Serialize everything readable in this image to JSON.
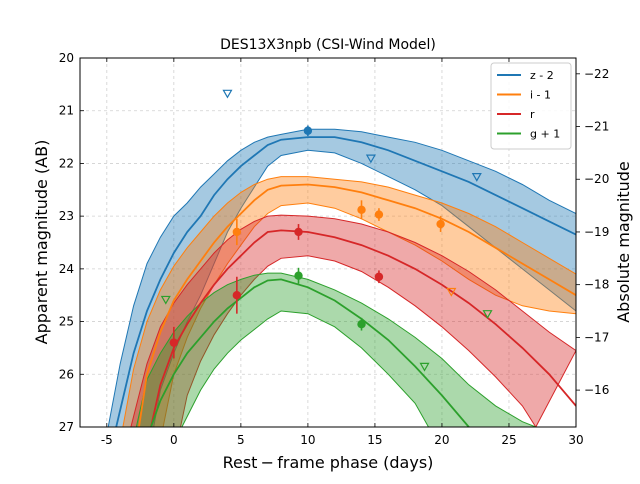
{
  "chart_data": {
    "type": "line",
    "title": "DES13X3npb (CSI-Wind Model)",
    "xlabel": "Rest − frame phase (days)",
    "ylabel": "Apparent magnitude (AB)",
    "y2label": "Absolute magnitude",
    "xlim": [
      -7,
      30
    ],
    "ylim": [
      27,
      20
    ],
    "y2lim": [
      -15.3,
      -22.3
    ],
    "xticks": [
      "-5",
      "0",
      "5",
      "10",
      "15",
      "20",
      "25",
      "30"
    ],
    "xtick_values": [
      -5,
      0,
      5,
      10,
      15,
      20,
      25,
      30
    ],
    "yticks": [
      "20",
      "21",
      "22",
      "23",
      "24",
      "25",
      "26",
      "27"
    ],
    "ytick_values": [
      20,
      21,
      22,
      23,
      24,
      25,
      26,
      27
    ],
    "y2ticks": [
      "−22",
      "−21",
      "−20",
      "−19",
      "−18",
      "−17",
      "−16"
    ],
    "y2tick_values": [
      -22,
      -21,
      -20,
      -19,
      -18,
      -17,
      -16
    ],
    "grid": true,
    "legend_position": "top-right",
    "series": [
      {
        "name": "z - 2",
        "color": "#1f77b4",
        "model": [
          [
            -4.3,
            27.0
          ],
          [
            -3,
            25.6
          ],
          [
            -2,
            24.8
          ],
          [
            -1,
            24.2
          ],
          [
            0,
            23.7
          ],
          [
            1,
            23.3
          ],
          [
            2,
            23.0
          ],
          [
            3,
            22.6
          ],
          [
            4,
            22.3
          ],
          [
            5,
            22.05
          ],
          [
            6,
            21.85
          ],
          [
            7,
            21.65
          ],
          [
            8,
            21.55
          ],
          [
            10,
            21.5
          ],
          [
            12,
            21.5
          ],
          [
            14,
            21.6
          ],
          [
            16,
            21.75
          ],
          [
            18,
            21.95
          ],
          [
            20,
            22.15
          ],
          [
            22,
            22.35
          ],
          [
            24,
            22.6
          ],
          [
            26,
            22.85
          ],
          [
            28,
            23.1
          ],
          [
            30,
            23.35
          ]
        ],
        "band_upper": [
          [
            -4.9,
            27.0
          ],
          [
            -4,
            25.8
          ],
          [
            -3,
            24.7
          ],
          [
            -2,
            23.9
          ],
          [
            -1,
            23.4
          ],
          [
            0,
            23.0
          ],
          [
            1,
            22.75
          ],
          [
            2,
            22.45
          ],
          [
            3,
            22.2
          ],
          [
            4,
            21.95
          ],
          [
            5,
            21.75
          ],
          [
            6,
            21.6
          ],
          [
            7,
            21.5
          ],
          [
            8,
            21.45
          ],
          [
            10,
            21.35
          ],
          [
            12,
            21.35
          ],
          [
            14,
            21.4
          ],
          [
            16,
            21.5
          ],
          [
            18,
            21.6
          ],
          [
            20,
            21.75
          ],
          [
            22,
            21.95
          ],
          [
            24,
            22.15
          ],
          [
            26,
            22.4
          ],
          [
            28,
            22.7
          ],
          [
            30,
            22.95
          ]
        ],
        "band_lower": [
          [
            -1.5,
            27.0
          ],
          [
            -1,
            26.3
          ],
          [
            0,
            25.6
          ],
          [
            1,
            25.0
          ],
          [
            2,
            24.5
          ],
          [
            3,
            23.9
          ],
          [
            4,
            23.3
          ],
          [
            5,
            22.85
          ],
          [
            6,
            22.45
          ],
          [
            7,
            22.05
          ],
          [
            8,
            21.85
          ],
          [
            10,
            21.75
          ],
          [
            12,
            21.8
          ],
          [
            14,
            22.0
          ],
          [
            16,
            22.25
          ],
          [
            18,
            22.5
          ],
          [
            20,
            22.8
          ],
          [
            22,
            23.2
          ],
          [
            24,
            23.6
          ],
          [
            26,
            24.0
          ],
          [
            28,
            24.4
          ],
          [
            30,
            24.8
          ]
        ],
        "detections": [
          {
            "x": 10,
            "y": 21.38,
            "err": 0.1
          }
        ],
        "upper_limits": [
          {
            "x": 4,
            "y": 20.67
          },
          {
            "x": 14.7,
            "y": 21.9
          },
          {
            "x": 22.6,
            "y": 22.25
          }
        ]
      },
      {
        "name": "i - 1",
        "color": "#ff7f0e",
        "model": [
          [
            -2.6,
            27.0
          ],
          [
            -2,
            26.0
          ],
          [
            -1,
            25.2
          ],
          [
            0,
            24.6
          ],
          [
            1,
            24.2
          ],
          [
            2,
            23.85
          ],
          [
            3,
            23.5
          ],
          [
            4,
            23.2
          ],
          [
            5,
            22.95
          ],
          [
            6,
            22.7
          ],
          [
            7,
            22.5
          ],
          [
            8,
            22.42
          ],
          [
            10,
            22.4
          ],
          [
            12,
            22.45
          ],
          [
            14,
            22.55
          ],
          [
            16,
            22.7
          ],
          [
            18,
            22.85
          ],
          [
            20,
            23.05
          ],
          [
            22,
            23.3
          ],
          [
            24,
            23.6
          ],
          [
            26,
            23.9
          ],
          [
            28,
            24.2
          ],
          [
            30,
            24.5
          ]
        ],
        "band_upper": [
          [
            -3.8,
            27.0
          ],
          [
            -3,
            25.9
          ],
          [
            -2,
            25.0
          ],
          [
            -1,
            24.4
          ],
          [
            0,
            23.95
          ],
          [
            1,
            23.6
          ],
          [
            2,
            23.3
          ],
          [
            3,
            23.0
          ],
          [
            4,
            22.75
          ],
          [
            5,
            22.55
          ],
          [
            6,
            22.4
          ],
          [
            7,
            22.3
          ],
          [
            8,
            22.25
          ],
          [
            10,
            22.25
          ],
          [
            12,
            22.3
          ],
          [
            14,
            22.35
          ],
          [
            16,
            22.45
          ],
          [
            18,
            22.6
          ],
          [
            20,
            22.75
          ],
          [
            22,
            22.95
          ],
          [
            24,
            23.2
          ],
          [
            26,
            23.5
          ],
          [
            28,
            23.8
          ],
          [
            30,
            24.1
          ]
        ],
        "band_lower": [
          [
            -0.8,
            27.0
          ],
          [
            0,
            26.0
          ],
          [
            1,
            25.3
          ],
          [
            2,
            24.75
          ],
          [
            3,
            24.3
          ],
          [
            4,
            23.9
          ],
          [
            5,
            23.55
          ],
          [
            6,
            23.2
          ],
          [
            7,
            22.95
          ],
          [
            8,
            22.8
          ],
          [
            10,
            22.75
          ],
          [
            12,
            22.85
          ],
          [
            14,
            23.05
          ],
          [
            16,
            23.3
          ],
          [
            18,
            23.55
          ],
          [
            20,
            23.85
          ],
          [
            22,
            24.2
          ],
          [
            24,
            24.5
          ],
          [
            26,
            24.7
          ],
          [
            28,
            24.8
          ],
          [
            30,
            24.85
          ]
        ],
        "detections": [
          {
            "x": 4.7,
            "y": 23.3,
            "err": 0.25
          },
          {
            "x": 14,
            "y": 22.88,
            "err": 0.18
          },
          {
            "x": 15.3,
            "y": 22.97,
            "err": 0.12
          },
          {
            "x": 19.9,
            "y": 23.15,
            "err": 0.15
          }
        ],
        "upper_limits": [
          {
            "x": 20.7,
            "y": 24.43
          }
        ]
      },
      {
        "name": "r",
        "color": "#d62728",
        "model": [
          [
            -1.7,
            27.0
          ],
          [
            -1,
            26.2
          ],
          [
            0,
            25.5
          ],
          [
            1,
            25.05
          ],
          [
            2,
            24.65
          ],
          [
            3,
            24.3
          ],
          [
            4,
            24.0
          ],
          [
            5,
            23.75
          ],
          [
            6,
            23.5
          ],
          [
            7,
            23.3
          ],
          [
            8,
            23.27
          ],
          [
            10,
            23.3
          ],
          [
            12,
            23.4
          ],
          [
            14,
            23.55
          ],
          [
            16,
            23.75
          ],
          [
            18,
            24.0
          ],
          [
            20,
            24.3
          ],
          [
            22,
            24.65
          ],
          [
            24,
            25.05
          ],
          [
            26,
            25.5
          ],
          [
            28,
            26.0
          ],
          [
            30,
            26.6
          ]
        ],
        "band_upper": [
          [
            -3.2,
            27.0
          ],
          [
            -2,
            25.8
          ],
          [
            -1,
            25.1
          ],
          [
            0,
            24.65
          ],
          [
            1,
            24.3
          ],
          [
            2,
            24.0
          ],
          [
            3,
            23.7
          ],
          [
            4,
            23.45
          ],
          [
            5,
            23.25
          ],
          [
            6,
            23.1
          ],
          [
            7,
            23.0
          ],
          [
            8,
            22.98
          ],
          [
            10,
            23.0
          ],
          [
            12,
            23.05
          ],
          [
            14,
            23.15
          ],
          [
            16,
            23.3
          ],
          [
            18,
            23.5
          ],
          [
            20,
            23.75
          ],
          [
            22,
            24.05
          ],
          [
            24,
            24.4
          ],
          [
            26,
            24.8
          ],
          [
            28,
            25.2
          ],
          [
            30,
            25.55
          ]
        ],
        "band_lower": [
          [
            0.5,
            27.0
          ],
          [
            1,
            26.4
          ],
          [
            2,
            25.75
          ],
          [
            3,
            25.25
          ],
          [
            4,
            24.85
          ],
          [
            5,
            24.5
          ],
          [
            6,
            24.2
          ],
          [
            7,
            23.95
          ],
          [
            8,
            23.8
          ],
          [
            10,
            23.75
          ],
          [
            12,
            23.85
          ],
          [
            14,
            24.05
          ],
          [
            16,
            24.35
          ],
          [
            18,
            24.7
          ],
          [
            20,
            25.1
          ],
          [
            22,
            25.55
          ],
          [
            24,
            26.05
          ],
          [
            26,
            26.6
          ],
          [
            27,
            27.0
          ]
        ],
        "detections": [
          {
            "x": 0,
            "y": 25.4,
            "err": 0.3
          },
          {
            "x": 4.7,
            "y": 24.5,
            "err": 0.35
          },
          {
            "x": 9.3,
            "y": 23.3,
            "err": 0.15
          },
          {
            "x": 15.3,
            "y": 24.15,
            "err": 0.12
          }
        ],
        "upper_limits": []
      },
      {
        "name": "g + 1",
        "color": "#2ca02c",
        "model": [
          [
            -1.7,
            27.0
          ],
          [
            -1,
            26.5
          ],
          [
            0,
            26.0
          ],
          [
            1,
            25.6
          ],
          [
            2,
            25.3
          ],
          [
            3,
            25.0
          ],
          [
            4,
            24.75
          ],
          [
            5,
            24.55
          ],
          [
            6,
            24.35
          ],
          [
            7,
            24.22
          ],
          [
            8,
            24.2
          ],
          [
            10,
            24.35
          ],
          [
            12,
            24.6
          ],
          [
            14,
            24.95
          ],
          [
            16,
            25.35
          ],
          [
            18,
            25.85
          ],
          [
            20,
            26.4
          ],
          [
            22,
            27.0
          ]
        ],
        "band_upper": [
          [
            -2.8,
            27.0
          ],
          [
            -2,
            26.1
          ],
          [
            -1,
            25.6
          ],
          [
            0,
            25.2
          ],
          [
            1,
            24.9
          ],
          [
            2,
            24.65
          ],
          [
            3,
            24.45
          ],
          [
            4,
            24.3
          ],
          [
            5,
            24.2
          ],
          [
            6,
            24.12
          ],
          [
            7,
            24.08
          ],
          [
            8,
            24.08
          ],
          [
            10,
            24.2
          ],
          [
            12,
            24.4
          ],
          [
            14,
            24.65
          ],
          [
            16,
            24.95
          ],
          [
            18,
            25.3
          ],
          [
            20,
            25.7
          ],
          [
            22,
            26.2
          ],
          [
            24,
            26.6
          ],
          [
            26,
            26.9
          ],
          [
            27,
            27.0
          ]
        ],
        "band_lower": [
          [
            0.6,
            27.0
          ],
          [
            1,
            26.8
          ],
          [
            2,
            26.3
          ],
          [
            3,
            25.9
          ],
          [
            4,
            25.6
          ],
          [
            5,
            25.35
          ],
          [
            6,
            25.15
          ],
          [
            7,
            24.95
          ],
          [
            8,
            24.8
          ],
          [
            10,
            24.85
          ],
          [
            12,
            25.1
          ],
          [
            14,
            25.5
          ],
          [
            16,
            26.0
          ],
          [
            18,
            26.55
          ],
          [
            19,
            27.0
          ]
        ],
        "detections": [
          {
            "x": 9.3,
            "y": 24.13,
            "err": 0.15
          },
          {
            "x": 14,
            "y": 25.05,
            "err": 0.12
          }
        ],
        "upper_limits": [
          {
            "x": -0.6,
            "y": 24.58
          },
          {
            "x": 18.7,
            "y": 25.85
          },
          {
            "x": 23.4,
            "y": 24.85
          }
        ]
      }
    ]
  }
}
